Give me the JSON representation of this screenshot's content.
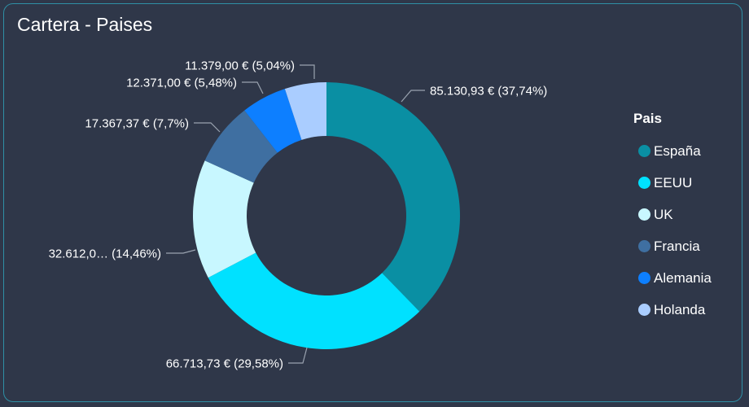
{
  "card": {
    "title": "Cartera - Paises"
  },
  "chart_data": {
    "type": "pie",
    "donut": true,
    "legend_title": "Pais",
    "legend_position": "right",
    "categories": [
      "España",
      "EEUU",
      "UK",
      "Francia",
      "Alemania",
      "Holanda"
    ],
    "values": [
      85130.93,
      66713.73,
      32612.0,
      17367.37,
      12371.0,
      11379.0
    ],
    "percentages": [
      37.74,
      29.58,
      14.46,
      7.7,
      5.48,
      5.04
    ],
    "data_labels": [
      "85.130,93 € (37,74%)",
      "66.713,73 € (29,58%)",
      "32.612,0… (14,46%)",
      "17.367,37 € (7,7%)",
      "12.371,00 € (5,48%)",
      "11.379,00 € (5,04%)"
    ],
    "colors": [
      "#0a8fa3",
      "#00e1ff",
      "#c8f7ff",
      "#3f6fa1",
      "#0d7fff",
      "#aacdff"
    ]
  }
}
